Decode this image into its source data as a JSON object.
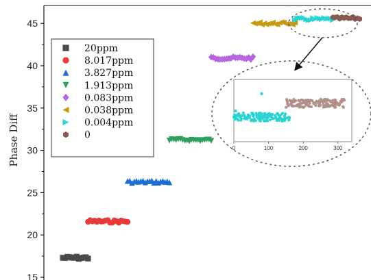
{
  "chart_data": {
    "type": "scatter",
    "title": "",
    "xlabel": "",
    "ylabel": "Phase Diff",
    "ylim": [
      15,
      47
    ],
    "yticks": [
      15,
      20,
      25,
      30,
      35,
      40,
      45
    ],
    "xlim": [
      0,
      4300
    ],
    "legend_position": "upper-left",
    "series": [
      {
        "name": "20ppm",
        "color": "#4a4a4a",
        "marker": "square",
        "x": [
          250,
          580
        ],
        "y": 17.3
      },
      {
        "name": "8.017ppm",
        "color": "#e8393b",
        "marker": "circle",
        "x": [
          580,
          1100
        ],
        "y": 21.6
      },
      {
        "name": "3.827ppm",
        "color": "#1f6fd1",
        "marker": "triangle-up",
        "x": [
          1100,
          1650
        ],
        "y": 26.3
      },
      {
        "name": "1.913ppm",
        "color": "#2fa05a",
        "marker": "triangle-down",
        "x": [
          1650,
          2200
        ],
        "y": 31.2
      },
      {
        "name": "0.083ppm",
        "color": "#b567e0",
        "marker": "diamond",
        "x": [
          2200,
          2750
        ],
        "y": 40.9
      },
      {
        "name": "0.038ppm",
        "color": "#c79a12",
        "marker": "triangle-left",
        "x": [
          2750,
          3300
        ],
        "y": 45.0
      },
      {
        "name": "0.004ppm",
        "color": "#2bd3d3",
        "marker": "triangle-right",
        "x": [
          3300,
          3800
        ],
        "y": 45.5
      },
      {
        "name": "0",
        "color": "#8a5a52",
        "marker": "hexagon",
        "x": [
          3800,
          4150
        ],
        "y": 45.6
      }
    ],
    "inset": {
      "xticks": [
        "0",
        "100",
        "200",
        "300"
      ],
      "xlim": [
        0,
        340
      ],
      "series": [
        {
          "name": "0.004ppm",
          "color": "#2bd3d3",
          "x": [
            0,
            165
          ]
        },
        {
          "name": "0",
          "color": "#b09088",
          "x": [
            150,
            320
          ]
        }
      ]
    }
  }
}
